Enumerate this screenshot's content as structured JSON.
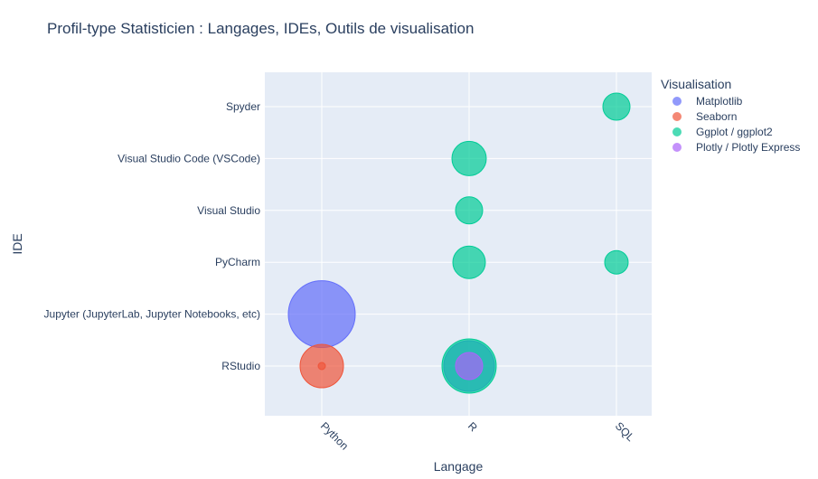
{
  "chart_data": {
    "type": "scatter",
    "title": "Profil-type Statisticien : Langages, IDEs, Outils de visualisation",
    "xlabel": "Langage",
    "ylabel": "IDE",
    "x_categories": [
      "Python",
      "R",
      "SQL"
    ],
    "y_categories": [
      "RStudio",
      "Jupyter (JupyterLab, Jupyter Notebooks, etc)",
      "PyCharm",
      "Visual Studio",
      "Visual Studio Code (VSCode)",
      "Spyder"
    ],
    "legend_title": "Visualisation",
    "legend_position": "top-right",
    "grid": true,
    "series": [
      {
        "name": "Matplotlib",
        "color": "#636efa",
        "points": [
          {
            "x": "Python",
            "y": "Jupyter (JupyterLab, Jupyter Notebooks, etc)",
            "size": 74
          },
          {
            "x": "R",
            "y": "RStudio",
            "size": 56
          }
        ]
      },
      {
        "name": "Seaborn",
        "color": "#EF553B",
        "points": [
          {
            "x": "Python",
            "y": "RStudio",
            "size": 48
          },
          {
            "x": "Python",
            "y": "RStudio",
            "size": 8
          }
        ]
      },
      {
        "name": "Ggplot / ggplot2",
        "color": "#00cc96",
        "points": [
          {
            "x": "SQL",
            "y": "Spyder",
            "size": 30
          },
          {
            "x": "R",
            "y": "Visual Studio Code (VSCode)",
            "size": 38
          },
          {
            "x": "R",
            "y": "Visual Studio",
            "size": 30
          },
          {
            "x": "R",
            "y": "PyCharm",
            "size": 36
          },
          {
            "x": "SQL",
            "y": "PyCharm",
            "size": 26
          },
          {
            "x": "R",
            "y": "RStudio",
            "size": 60
          }
        ]
      },
      {
        "name": "Plotly / Plotly Express",
        "color": "#ab63fa",
        "points": [
          {
            "x": "R",
            "y": "RStudio",
            "size": 30
          }
        ]
      }
    ]
  }
}
